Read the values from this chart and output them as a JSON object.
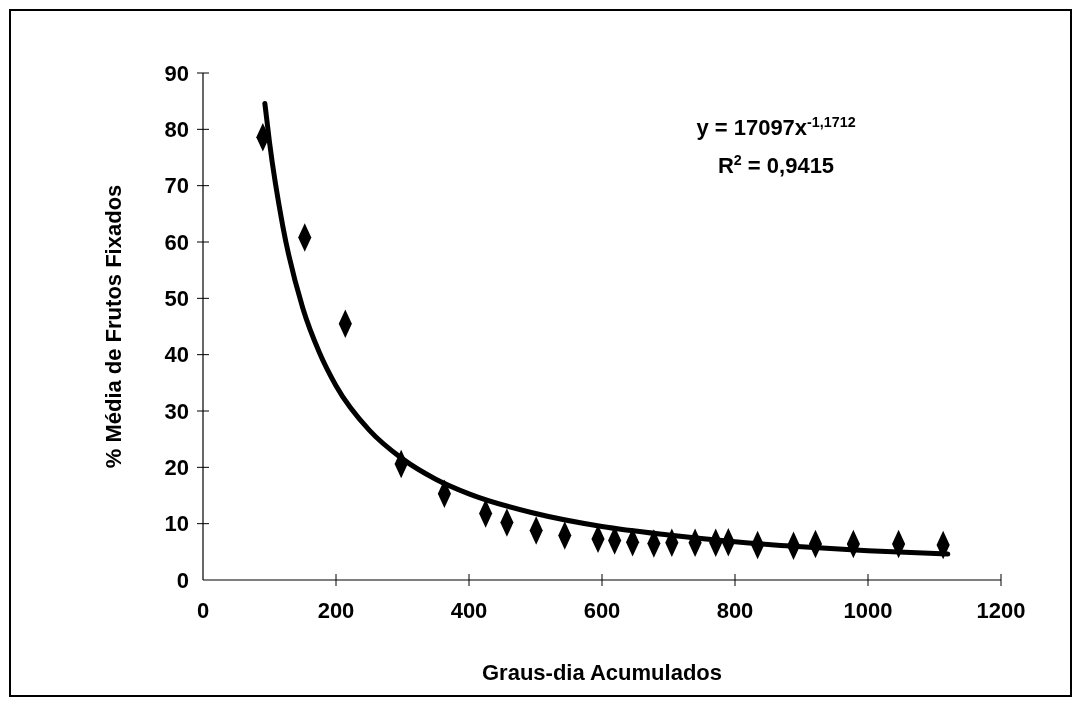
{
  "chart_data": {
    "type": "scatter",
    "xlabel": "Graus-dia Acumulados",
    "ylabel": "% Média de Frutos Fixados",
    "xlim": [
      0,
      1200
    ],
    "ylim": [
      0,
      90
    ],
    "xticks": [
      0,
      200,
      400,
      600,
      800,
      1000,
      1200
    ],
    "yticks": [
      0,
      10,
      20,
      30,
      40,
      50,
      60,
      70,
      80,
      90
    ],
    "grid": false,
    "annotations": [
      "y = 17097x$^{-1,1712}$",
      "R$^{2}$ = 0,9415"
    ],
    "series": [
      {
        "marker": "diamond",
        "color": "#000000",
        "x": [
          90,
          153,
          214,
          298,
          363,
          425,
          457,
          501,
          544,
          594,
          619,
          646,
          678,
          705,
          740,
          771,
          790,
          834,
          888,
          921,
          978,
          1046,
          1113
        ],
        "values": [
          78.6,
          60.8,
          45.5,
          20.6,
          15.3,
          11.8,
          10.2,
          8.8,
          7.9,
          7.3,
          7.0,
          6.7,
          6.5,
          6.6,
          6.6,
          6.6,
          6.7,
          6.2,
          6.1,
          6.4,
          6.4,
          6.4,
          6.2
        ]
      },
      {
        "type": "line",
        "color": "#000000",
        "x": [
          93,
          100,
          120,
          150,
          175,
          200,
          250,
          300,
          350,
          400,
          500,
          600,
          700,
          800,
          900,
          1000,
          1120
        ],
        "values": [
          84.6,
          77.7,
          62.8,
          48.3,
          40.4,
          34.5,
          26.6,
          21.5,
          17.9,
          15.3,
          11.8,
          9.5,
          8.0,
          6.8,
          5.9,
          5.2,
          4.6
        ]
      }
    ]
  }
}
